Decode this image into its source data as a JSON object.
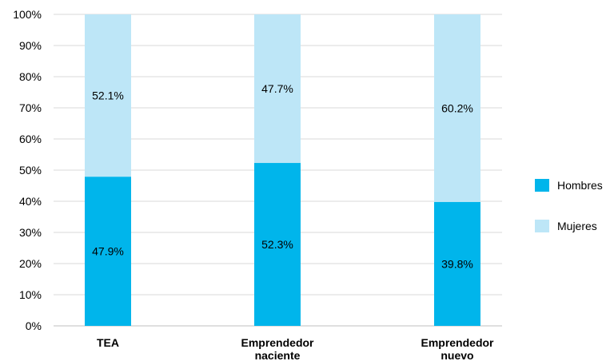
{
  "chart_data": {
    "type": "bar",
    "stacked": true,
    "categories": [
      [
        "TEA"
      ],
      [
        "Emprendedor",
        "naciente"
      ],
      [
        "Emprendedor",
        "nuevo"
      ]
    ],
    "series": [
      {
        "name": "Hombres",
        "values": [
          47.9,
          52.3,
          39.8
        ],
        "labels": [
          "47.9%",
          "52.3%",
          "39.8%"
        ],
        "color": "#00b5eb"
      },
      {
        "name": "Mujeres",
        "values": [
          52.1,
          47.7,
          60.2
        ],
        "labels": [
          "52.1%",
          "47.7%",
          "60.2%"
        ],
        "color": "#bde6f7"
      }
    ],
    "yticks": [
      "0%",
      "10%",
      "20%",
      "30%",
      "40%",
      "50%",
      "60%",
      "70%",
      "80%",
      "90%",
      "100%"
    ],
    "ylim": [
      0,
      100
    ],
    "grid": true,
    "legend_position": "right"
  }
}
